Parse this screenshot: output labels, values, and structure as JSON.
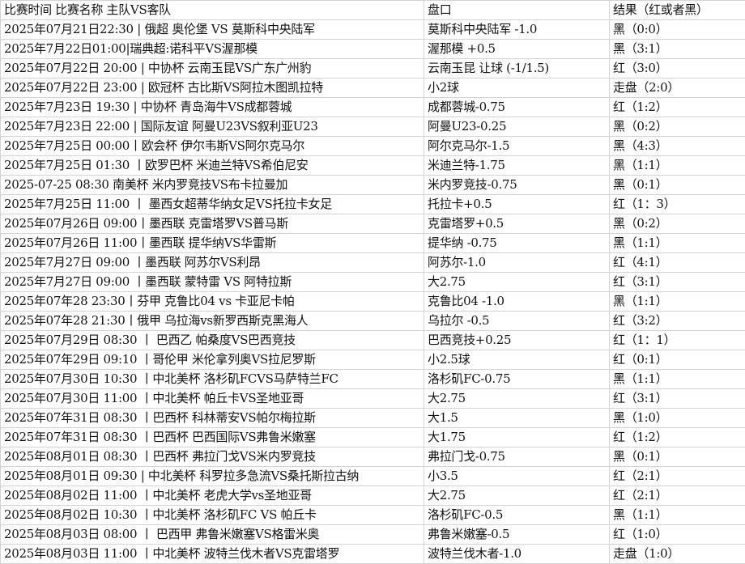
{
  "header": [
    "比赛时间 比赛名称 主队VS客队",
    "盘口",
    "结果（红或者黑）"
  ],
  "rows": [
    [
      "2025年07月21日22:30 | 俄超 奥伦堡 VS 莫斯科中央陆军",
      "莫斯科中央陆军 -1.0",
      "黑（0:0）"
    ],
    [
      "2025年7月22日01:00|瑞典超:诺科平VS渥那模",
      "渥那模 +0.5",
      "黑（3:1）"
    ],
    [
      "2025年07月22日 20:00 | 中协杯 云南玉昆VS广东广州豹",
      "云南玉昆 让球 (-1/1.5)",
      "红（3:0）"
    ],
    [
      "2025年07月22日 23:00 | 欧冠杯 古比斯VS阿拉木图凯拉特",
      "小2球",
      "走盘（2:0）"
    ],
    [
      "2025年7月23日 19:30 | 中协杯 青岛海牛VS成都蓉城",
      "成都蓉城-0.75",
      "红（1:2）"
    ],
    [
      "2025年7月23日 22:00 | 国际友谊 阿曼U23VS叙利亚U23",
      "阿曼U23-0.25",
      "黑（0:2）"
    ],
    [
      "2025年7月25日 00:00丨欧会杯 伊尔韦斯VS阿尔克马尔",
      "阿尔克马尔-1.5",
      "黑（4:3）"
    ],
    [
      "2025年7月25日 01:30 丨欧罗巴杯 米迪兰特VS希伯尼安",
      "米迪兰特-1.75",
      "黑（1:1）"
    ],
    [
      "2025-07-25 08:30 南美杯 米内罗竞技VS布卡拉曼加",
      "米内罗竞技-0.75",
      "黑（0:1）"
    ],
    [
      "2025年7月25日 11:00 丨 墨西女超蒂华纳女足VS托拉卡女足",
      "托拉卡+0.5",
      "红（1：3）"
    ],
    [
      "2025年07月26日 09:00丨墨西联 克雷塔罗VS普马斯",
      "克雷塔罗+0.5",
      "黑（0:2）"
    ],
    [
      "2025年07月26日 11:00丨墨西联 提华纳VS华雷斯",
      "提华纳 -0.75",
      "黑（1:1）"
    ],
    [
      "2025年7月27日 09:00 丨墨西联 阿苏尔VS利昂",
      "阿苏尔-1.0",
      "红（4:1）"
    ],
    [
      "2025年7月27日 09:00 丨墨西联 蒙特雷 VS 阿特拉斯",
      "大2.75",
      "红（3:1）"
    ],
    [
      "2025年07年28 23:30丨芬甲 克鲁比04 vs 卡亚尼卡帕",
      "克鲁比04 -1.0",
      "黑（1:1）"
    ],
    [
      "2025年07年28 21:30丨俄甲 乌拉海vs新罗西斯克黑海人",
      "乌拉尔 -0.5",
      "红（3:2）"
    ],
    [
      "2025年07月29日 08:30 丨 巴西乙 帕桑度VS巴西竞技",
      "巴西竞技+0.25",
      "红（1：1）"
    ],
    [
      "2025年07年29日 09:10 丨哥伦甲 米伦拿列奥VS拉尼罗斯",
      "小2.5球",
      "红（0:1）"
    ],
    [
      "2025年07月30日 10:30 丨中北美杯 洛杉矶FCVS马萨特兰FC",
      "洛杉矶FC-0.75",
      "黑（1:1）"
    ],
    [
      "2025年07月30日 11:00 丨中北美杯 帕丘卡VS圣地亚哥",
      "大2.75",
      "红（3:1）"
    ],
    [
      "2025年07年31日 08:30 丨巴西杯 科林蒂安VS帕尔梅拉斯",
      "大1.5",
      "黑（1:0）"
    ],
    [
      "2025年07年31日 08:30 丨巴西杯 巴西国际VS弗鲁米嫩塞",
      "大1.75",
      "红（1:2）"
    ],
    [
      "2025年08月01日 08:30 丨巴西杯 弗拉门戈VS米内罗竞技",
      "弗拉门戈-0.75",
      "黑（0:1）"
    ],
    [
      "2025年08月01日 09:30 | 中北美杯 科罗拉多急流VS桑托斯拉古纳",
      "小3.5",
      "红（2:1）"
    ],
    [
      "2025年08月02日 11:00 丨中北美杯 老虎大学vs圣地亚哥",
      "大2.75",
      "红（2:1）"
    ],
    [
      "2025年08月02日 10:30 丨中北美杯 洛杉矶FC VS 帕丘卡",
      "洛杉矶FC-0.5",
      "黑（1:1）"
    ],
    [
      "2025年08月03日 08:00 丨 巴西甲 弗鲁米嫩塞VS格雷米奥",
      "弗鲁米嫩塞-0.5",
      "红（1:0）"
    ],
    [
      "2025年08月03日 11:00 丨中北美杯 波特兰伐木者VS克雷塔罗",
      "波特兰伐木者-1.0",
      "走盘（1:0）"
    ]
  ]
}
